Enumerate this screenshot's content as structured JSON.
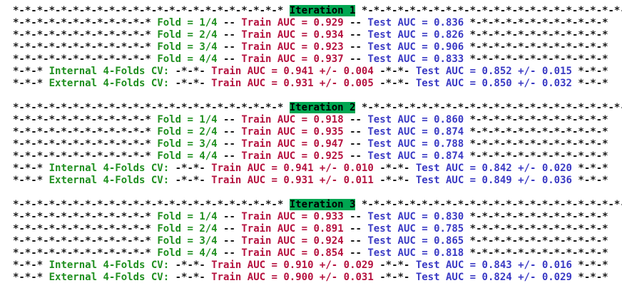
{
  "separators": {
    "header": "*-*-*-*-*-*-*-*-*-*-*-*-*-*-*-*-*-*-*-*-*-*-*",
    "fold": "*-*-*-*-*-*-*-*-*-*-*-*",
    "fold_mid": "--",
    "cv_edge": "*-*-*",
    "cv_mid": "-*-*-"
  },
  "iterations": [
    {
      "title": "Iteration 1",
      "folds": [
        {
          "fold": "Fold = 1/4",
          "train": "Train AUC = 0.929",
          "test": "Test AUC = 0.836"
        },
        {
          "fold": "Fold = 2/4",
          "train": "Train AUC = 0.934",
          "test": "Test AUC = 0.826"
        },
        {
          "fold": "Fold = 3/4",
          "train": "Train AUC = 0.923",
          "test": "Test AUC = 0.906"
        },
        {
          "fold": "Fold = 4/4",
          "train": "Train AUC = 0.937",
          "test": "Test AUC = 0.833"
        }
      ],
      "cv": [
        {
          "label": "Internal 4-Folds CV:",
          "train": "Train AUC = 0.941 +/- 0.004",
          "test": "Test AUC = 0.852 +/- 0.015"
        },
        {
          "label": "External 4-Folds CV:",
          "train": "Train AUC = 0.931 +/- 0.005",
          "test": "Test AUC = 0.850 +/- 0.032"
        }
      ]
    },
    {
      "title": "Iteration 2",
      "folds": [
        {
          "fold": "Fold = 1/4",
          "train": "Train AUC = 0.918",
          "test": "Test AUC = 0.860"
        },
        {
          "fold": "Fold = 2/4",
          "train": "Train AUC = 0.935",
          "test": "Test AUC = 0.874"
        },
        {
          "fold": "Fold = 3/4",
          "train": "Train AUC = 0.947",
          "test": "Test AUC = 0.788"
        },
        {
          "fold": "Fold = 4/4",
          "train": "Train AUC = 0.925",
          "test": "Test AUC = 0.874"
        }
      ],
      "cv": [
        {
          "label": "Internal 4-Folds CV:",
          "train": "Train AUC = 0.941 +/- 0.010",
          "test": "Test AUC = 0.842 +/- 0.020"
        },
        {
          "label": "External 4-Folds CV:",
          "train": "Train AUC = 0.931 +/- 0.011",
          "test": "Test AUC = 0.849 +/- 0.036"
        }
      ]
    },
    {
      "title": "Iteration 3",
      "folds": [
        {
          "fold": "Fold = 1/4",
          "train": "Train AUC = 0.933",
          "test": "Test AUC = 0.830"
        },
        {
          "fold": "Fold = 2/4",
          "train": "Train AUC = 0.891",
          "test": "Test AUC = 0.785"
        },
        {
          "fold": "Fold = 3/4",
          "train": "Train AUC = 0.924",
          "test": "Test AUC = 0.865"
        },
        {
          "fold": "Fold = 4/4",
          "train": "Train AUC = 0.854",
          "test": "Test AUC = 0.818"
        }
      ],
      "cv": [
        {
          "label": "Internal 4-Folds CV:",
          "train": "Train AUC = 0.910 +/- 0.029",
          "test": "Test AUC = 0.843 +/- 0.016"
        },
        {
          "label": "External 4-Folds CV:",
          "train": "Train AUC = 0.900 +/- 0.031",
          "test": "Test AUC = 0.824 +/- 0.029"
        }
      ]
    }
  ]
}
